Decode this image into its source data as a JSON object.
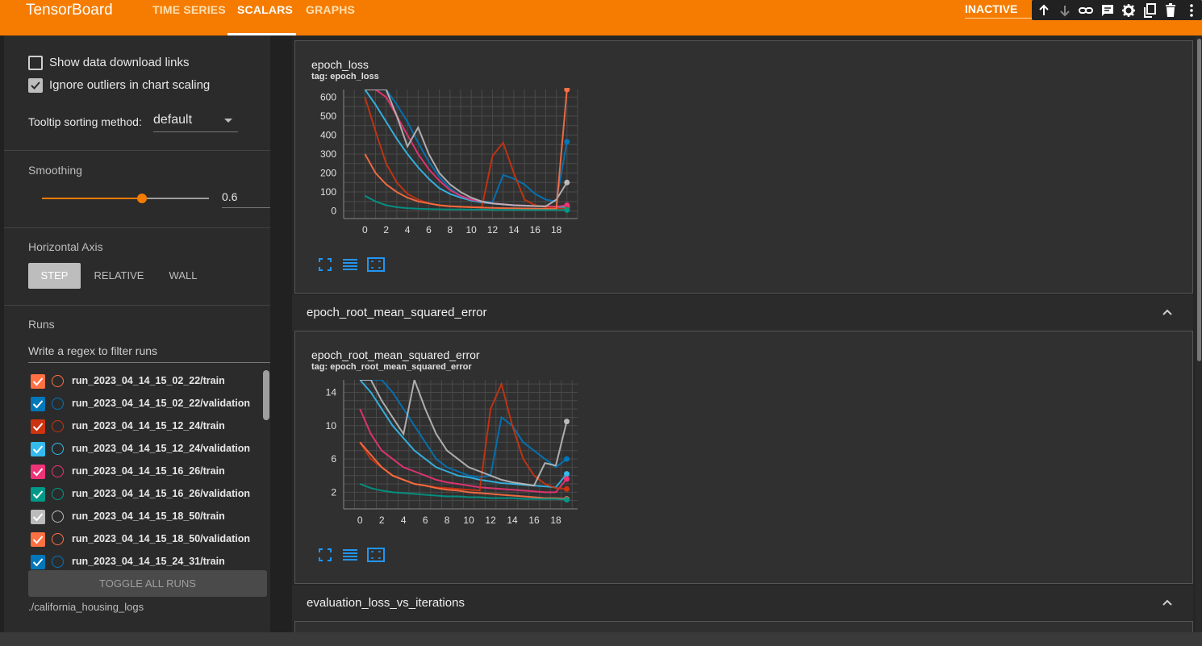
{
  "header": {
    "brand": "TensorBoard",
    "tabs": [
      {
        "label": "TIME SERIES"
      },
      {
        "label": "SCALARS"
      },
      {
        "label": "GRAPHS"
      }
    ],
    "status": "INACTIVE",
    "icons": [
      "arrow-up-icon",
      "arrow-down-icon",
      "link-icon",
      "feedback-icon",
      "settings-icon",
      "copy-icon",
      "delete-icon",
      "more-icon"
    ]
  },
  "sidebar": {
    "show_download_links": "Show data download links",
    "ignore_outliers": "Ignore outliers in chart scaling",
    "tooltip_label": "Tooltip sorting method:",
    "tooltip_value": "default",
    "smoothing_label": "Smoothing",
    "smoothing_value": "0.6",
    "smoothing_fraction": 0.6,
    "horizontal_axis_label": "Horizontal Axis",
    "axis_options": [
      "STEP",
      "RELATIVE",
      "WALL"
    ],
    "runs_label": "Runs",
    "filter_placeholder": "Write a regex to filter runs",
    "runs": [
      {
        "name": "run_2023_04_14_15_02_22/train",
        "color": "#ff7043"
      },
      {
        "name": "run_2023_04_14_15_02_22/validation",
        "color": "#0077bb"
      },
      {
        "name": "run_2023_04_14_15_12_24/train",
        "color": "#cc3311"
      },
      {
        "name": "run_2023_04_14_15_12_24/validation",
        "color": "#33bbee"
      },
      {
        "name": "run_2023_04_14_15_16_26/train",
        "color": "#ee3377"
      },
      {
        "name": "run_2023_04_14_15_16_26/validation",
        "color": "#009988"
      },
      {
        "name": "run_2023_04_14_15_18_50/train",
        "color": "#bbbbbb"
      },
      {
        "name": "run_2023_04_14_15_18_50/validation",
        "color": "#ff7043"
      },
      {
        "name": "run_2023_04_14_15_24_31/train",
        "color": "#0077bb"
      }
    ],
    "toggle_all": "TOGGLE ALL RUNS",
    "logdir": "./california_housing_logs"
  },
  "main": {
    "cards": [
      {
        "title": "epoch_loss",
        "tag": "tag: epoch_loss"
      },
      {
        "title": "epoch_root_mean_squared_error",
        "tag": "tag: epoch_root_mean_squared_error"
      }
    ],
    "groups": [
      {
        "title": "epoch_root_mean_squared_error"
      },
      {
        "title": "evaluation_loss_vs_iterations"
      }
    ]
  },
  "chart_data": [
    {
      "type": "line",
      "title": "epoch_loss",
      "x_ticks": [
        0,
        2,
        4,
        6,
        8,
        10,
        12,
        14,
        16,
        18
      ],
      "y_ticks": [
        0,
        100,
        200,
        300,
        400,
        500,
        600
      ],
      "xlim": [
        -2,
        20
      ],
      "ylim": [
        -40,
        640
      ],
      "series": [
        {
          "color": "#33bbee",
          "x": [
            0,
            1,
            2,
            3,
            4,
            5,
            6,
            7,
            8,
            9,
            10,
            11,
            12,
            13,
            14,
            15,
            16,
            17,
            18,
            19
          ],
          "y": [
            640,
            560,
            470,
            380,
            300,
            230,
            170,
            120,
            90,
            70,
            55,
            45,
            40,
            35,
            30,
            28,
            26,
            24,
            22,
            20
          ]
        },
        {
          "color": "#0077bb",
          "x": [
            0,
            1,
            2,
            3,
            4,
            5,
            6,
            7,
            8,
            9,
            10,
            11,
            12,
            13,
            14,
            15,
            16,
            17,
            18,
            19
          ],
          "y": [
            640,
            640,
            640,
            560,
            470,
            360,
            260,
            180,
            120,
            80,
            60,
            50,
            45,
            190,
            170,
            140,
            90,
            60,
            50,
            365
          ]
        },
        {
          "color": "#ee3377",
          "x": [
            0,
            1,
            2,
            3,
            4,
            5,
            6,
            7,
            8,
            9,
            10,
            11,
            12,
            13,
            14,
            15,
            16,
            17,
            18,
            19
          ],
          "y": [
            640,
            640,
            600,
            500,
            400,
            300,
            220,
            160,
            110,
            80,
            60,
            50,
            40,
            35,
            30,
            28,
            26,
            24,
            22,
            30
          ]
        },
        {
          "color": "#cc3311",
          "x": [
            0,
            1,
            2,
            3,
            4,
            5,
            6,
            7,
            8,
            9,
            10,
            11,
            12,
            13,
            14,
            15,
            16,
            17,
            18,
            19
          ],
          "y": [
            600,
            420,
            250,
            150,
            90,
            60,
            40,
            30,
            25,
            22,
            20,
            20,
            290,
            360,
            200,
            60,
            30,
            20,
            15,
            10
          ]
        },
        {
          "color": "#bbbbbb",
          "x": [
            0,
            1,
            2,
            3,
            4,
            5,
            6,
            7,
            8,
            9,
            10,
            11,
            12,
            13,
            14,
            15,
            16,
            17,
            18,
            19
          ],
          "y": [
            640,
            640,
            640,
            500,
            340,
            440,
            300,
            200,
            140,
            100,
            70,
            50,
            40,
            35,
            30,
            28,
            26,
            24,
            60,
            150
          ]
        },
        {
          "color": "#ff7043",
          "x": [
            0,
            1,
            2,
            3,
            4,
            5,
            6,
            7,
            8,
            9,
            10,
            11,
            12,
            13,
            14,
            15,
            16,
            17,
            18,
            19
          ],
          "y": [
            300,
            200,
            140,
            100,
            70,
            50,
            40,
            30,
            25,
            22,
            20,
            18,
            16,
            15,
            14,
            13,
            12,
            11,
            10,
            640
          ]
        },
        {
          "color": "#009988",
          "x": [
            0,
            1,
            2,
            3,
            4,
            5,
            6,
            7,
            8,
            9,
            10,
            11,
            12,
            13,
            14,
            15,
            16,
            17,
            18,
            19
          ],
          "y": [
            80,
            50,
            30,
            20,
            15,
            12,
            10,
            9,
            8,
            8,
            7,
            7,
            6,
            6,
            6,
            5,
            5,
            5,
            5,
            5
          ]
        }
      ]
    },
    {
      "type": "line",
      "title": "epoch_root_mean_squared_error",
      "x_ticks": [
        0,
        2,
        4,
        6,
        8,
        10,
        12,
        14,
        16,
        18
      ],
      "y_ticks": [
        2,
        6,
        10,
        14
      ],
      "xlim": [
        -1.5,
        20
      ],
      "ylim": [
        0,
        15.5
      ],
      "series": [
        {
          "color": "#33bbee",
          "x": [
            0,
            1,
            2,
            3,
            4,
            5,
            6,
            7,
            8,
            9,
            10,
            11,
            12,
            13,
            14,
            15,
            16,
            17,
            18,
            19
          ],
          "y": [
            15.5,
            14,
            12,
            10,
            8.5,
            7,
            6,
            5,
            4.5,
            4,
            3.8,
            3.5,
            3.3,
            3.1,
            3,
            2.9,
            2.8,
            2.7,
            2.6,
            4.2
          ]
        },
        {
          "color": "#0077bb",
          "x": [
            0,
            1,
            2,
            3,
            4,
            5,
            6,
            7,
            8,
            9,
            10,
            11,
            12,
            13,
            14,
            15,
            16,
            17,
            18,
            19
          ],
          "y": [
            15.5,
            15.5,
            15.5,
            14,
            12,
            10,
            8,
            6,
            5,
            4.5,
            4,
            3.8,
            4,
            11,
            10,
            8,
            7,
            6,
            5,
            6
          ]
        },
        {
          "color": "#ee3377",
          "x": [
            0,
            1,
            2,
            3,
            4,
            5,
            6,
            7,
            8,
            9,
            10,
            11,
            12,
            13,
            14,
            15,
            16,
            17,
            18,
            19
          ],
          "y": [
            12,
            9,
            7,
            6,
            5,
            4.5,
            4,
            3.5,
            3.2,
            3,
            2.8,
            2.6,
            2.5,
            2.4,
            2.3,
            2.2,
            2.1,
            2,
            2,
            3.6
          ]
        },
        {
          "color": "#cc3311",
          "x": [
            0,
            1,
            2,
            3,
            4,
            5,
            6,
            7,
            8,
            9,
            10,
            11,
            12,
            13,
            14,
            15,
            16,
            17,
            18,
            19
          ],
          "y": [
            8,
            6,
            5,
            4,
            3.5,
            3,
            2.8,
            2.6,
            2.5,
            2.4,
            2.3,
            2.2,
            12,
            15,
            10,
            6,
            4,
            3,
            2.5,
            2.4
          ]
        },
        {
          "color": "#bbbbbb",
          "x": [
            0,
            1,
            2,
            3,
            4,
            5,
            6,
            7,
            8,
            9,
            10,
            11,
            12,
            13,
            14,
            15,
            16,
            17,
            18,
            19
          ],
          "y": [
            15.5,
            15.5,
            13,
            11,
            9,
            15.5,
            12,
            9,
            7,
            6,
            5,
            4.5,
            4,
            3.5,
            3.2,
            3,
            2.8,
            5.5,
            5.2,
            10.5
          ]
        },
        {
          "color": "#ff7043",
          "x": [
            0,
            1,
            2,
            3,
            4,
            5,
            6,
            7,
            8,
            9,
            10,
            11,
            12,
            13,
            14,
            15,
            16,
            17,
            18,
            19
          ],
          "y": [
            8,
            6.5,
            5,
            4,
            3.5,
            3,
            2.8,
            2.5,
            2.3,
            2.2,
            2,
            1.9,
            1.8,
            1.7,
            1.6,
            1.5,
            1.4,
            1.3,
            1.3,
            1.2
          ]
        },
        {
          "color": "#009988",
          "x": [
            0,
            1,
            2,
            3,
            4,
            5,
            6,
            7,
            8,
            9,
            10,
            11,
            12,
            13,
            14,
            15,
            16,
            17,
            18,
            19
          ],
          "y": [
            3,
            2.5,
            2.2,
            2,
            1.9,
            1.8,
            1.7,
            1.6,
            1.5,
            1.5,
            1.4,
            1.4,
            1.3,
            1.3,
            1.3,
            1.2,
            1.2,
            1.2,
            1.2,
            1.1
          ]
        }
      ]
    }
  ]
}
